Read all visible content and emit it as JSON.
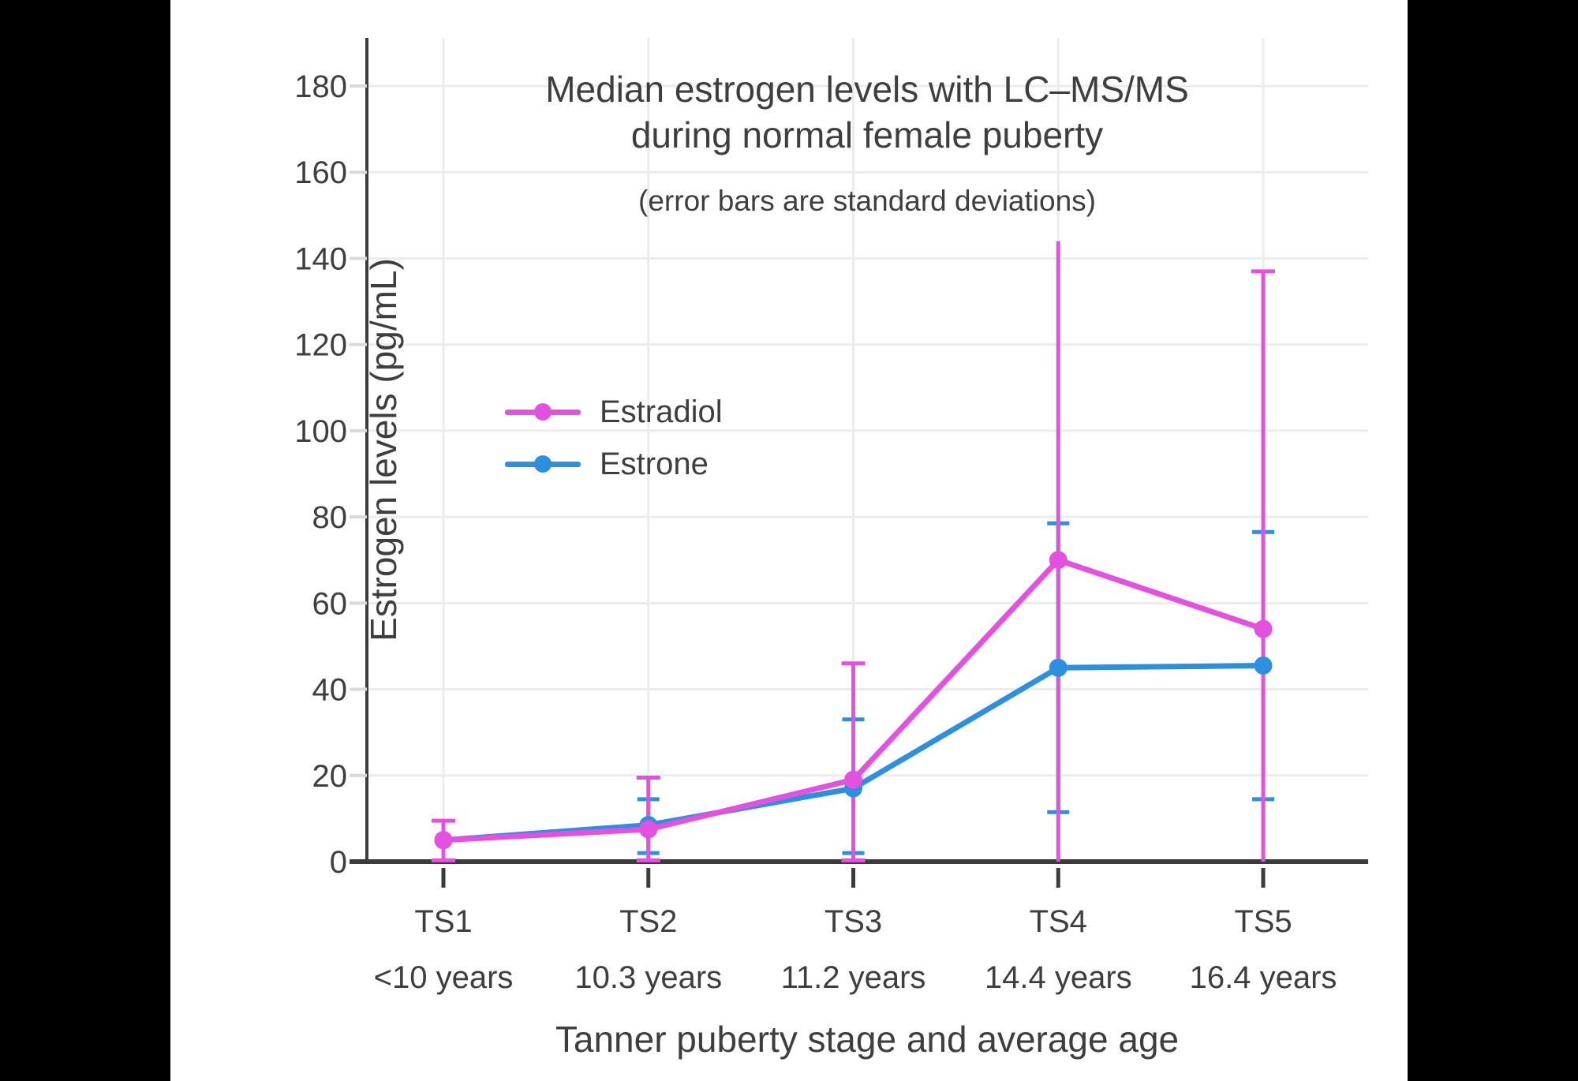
{
  "canvas": {
    "background": "#000000",
    "panel_background": "#ffffff",
    "text_color": "#3e3e3e",
    "axis_color": "#3b3b3b",
    "grid_color": "#ececec",
    "minor_tick_color": "#d9d9d9"
  },
  "chart_data": {
    "type": "line",
    "title_line1": "Median estrogen levels with LC–MS/MS",
    "title_line2": "during normal female puberty",
    "subtitle": "(error bars are standard deviations)",
    "ylabel": "Estrogen levels (pg/mL)",
    "xlabel": "Tanner puberty stage and average age",
    "ylim": [
      0,
      191
    ],
    "ytick_step": 20,
    "yticks": [
      0,
      20,
      40,
      60,
      80,
      100,
      120,
      140,
      160,
      180
    ],
    "grid": true,
    "legend_position": "inside-left",
    "categories": [
      "TS1",
      "TS2",
      "TS3",
      "TS4",
      "TS5"
    ],
    "category_ages": [
      "<10 years",
      "10.3 years",
      "11.2 years",
      "14.4 years",
      "16.4 years"
    ],
    "error_bar_note": "error bars are standard deviations",
    "series": [
      {
        "name": "Estradiol",
        "color": "#e251e0",
        "values": [
          5,
          7.5,
          19,
          70,
          54
        ],
        "error_low": [
          0.3,
          0.3,
          0.3,
          0,
          0
        ],
        "error_high": [
          9.5,
          19.5,
          46,
          144,
          137
        ],
        "cap_low": [
          true,
          true,
          true,
          false,
          false
        ],
        "cap_high": [
          true,
          true,
          true,
          false,
          true
        ],
        "z": "top"
      },
      {
        "name": "Estrone",
        "color": "#2c90de",
        "values": [
          5,
          8.5,
          17,
          45,
          45.5
        ],
        "error_low": [
          null,
          2,
          2,
          11.5,
          14.5
        ],
        "error_high": [
          null,
          14.5,
          33,
          78.5,
          76.5
        ],
        "cap_low": [
          false,
          true,
          true,
          true,
          true
        ],
        "cap_high": [
          false,
          true,
          true,
          true,
          true
        ],
        "z": "bottom"
      }
    ]
  }
}
